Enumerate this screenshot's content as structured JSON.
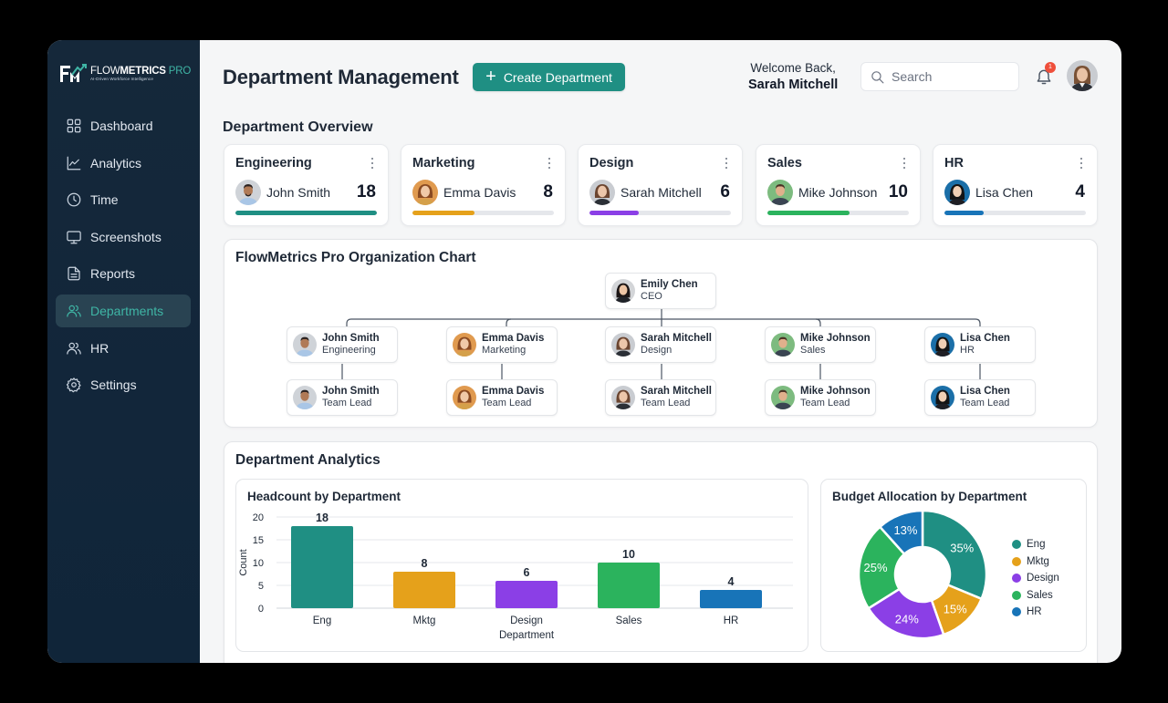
{
  "app": {
    "brand_main": "FLOW",
    "brand_bold": "METRICS",
    "brand_pro": "PRO",
    "tagline": "AI-Driven Workforce Intelligence"
  },
  "sidebar": {
    "items": [
      {
        "label": "Dashboard",
        "icon": "grid-icon",
        "active": false
      },
      {
        "label": "Analytics",
        "icon": "line-chart-icon",
        "active": false
      },
      {
        "label": "Time",
        "icon": "clock-icon",
        "active": false
      },
      {
        "label": "Screenshots",
        "icon": "monitor-icon",
        "active": false
      },
      {
        "label": "Reports",
        "icon": "document-icon",
        "active": false
      },
      {
        "label": "Departments",
        "icon": "users-icon",
        "active": true
      },
      {
        "label": "HR",
        "icon": "users-icon",
        "active": false
      },
      {
        "label": "Settings",
        "icon": "gear-icon",
        "active": false
      }
    ]
  },
  "header": {
    "title": "Department Management",
    "create_button": "Create Department",
    "welcome_line": "Welcome Back,",
    "user_name": "Sarah Mitchell",
    "search_placeholder": "Search",
    "notification_count": "1"
  },
  "overview": {
    "title": "Department Overview",
    "cards": [
      {
        "name": "Engineering",
        "lead": "John Smith",
        "count": "18",
        "progress": 100,
        "color": "#1f8f83"
      },
      {
        "name": "Marketing",
        "lead": "Emma Davis",
        "count": "8",
        "progress": 44,
        "color": "#e5a11b"
      },
      {
        "name": "Design",
        "lead": "Sarah Mitchell",
        "count": "6",
        "progress": 35,
        "color": "#8b3fe6"
      },
      {
        "name": "Sales",
        "lead": "Mike Johnson",
        "count": "10",
        "progress": 58,
        "color": "#2bb35d"
      },
      {
        "name": "HR",
        "lead": "Lisa Chen",
        "count": "4",
        "progress": 28,
        "color": "#1874b8"
      }
    ]
  },
  "org_chart": {
    "title": "FlowMetrics Pro Organization Chart",
    "root": {
      "name": "Emily Chen",
      "role": "CEO"
    },
    "departments": [
      {
        "head": {
          "name": "John Smith",
          "role": "Engineering"
        },
        "lead": {
          "name": "John Smith",
          "role": "Team Lead"
        }
      },
      {
        "head": {
          "name": "Emma Davis",
          "role": "Marketing"
        },
        "lead": {
          "name": "Emma Davis",
          "role": "Team Lead"
        }
      },
      {
        "head": {
          "name": "Sarah Mitchell",
          "role": "Design"
        },
        "lead": {
          "name": "Sarah Mitchell",
          "role": "Team Lead"
        }
      },
      {
        "head": {
          "name": "Mike Johnson",
          "role": "Sales"
        },
        "lead": {
          "name": "Mike Johnson",
          "role": "Team Lead"
        }
      },
      {
        "head": {
          "name": "Lisa Chen",
          "role": "HR"
        },
        "lead": {
          "name": "Lisa Chen",
          "role": "Team Lead"
        }
      }
    ]
  },
  "analytics": {
    "title": "Department Analytics"
  },
  "chart_data": [
    {
      "type": "bar",
      "title": "Headcount by Department",
      "categories": [
        "Eng",
        "Mktg",
        "Design",
        "Sales",
        "HR"
      ],
      "values": [
        18,
        8,
        6,
        10,
        4
      ],
      "colors": [
        "#1f8f83",
        "#e5a11b",
        "#8b3fe6",
        "#2bb35d",
        "#1874b8"
      ],
      "xlabel": "Department",
      "ylabel": "Count",
      "ylim": [
        0,
        20
      ],
      "yticks": [
        0,
        5,
        10,
        15,
        20
      ],
      "grid": true,
      "data_labels": true
    },
    {
      "type": "pie",
      "title": "Budget Allocation by Department",
      "donut": true,
      "categories": [
        "Eng",
        "Mktg",
        "Design",
        "Sales",
        "HR"
      ],
      "values": [
        35,
        15,
        24,
        25,
        13
      ],
      "labels": [
        "35%",
        "15%",
        "24%",
        "25%",
        "13%"
      ],
      "colors": [
        "#1f8f83",
        "#e5a11b",
        "#8b3fe6",
        "#2bb35d",
        "#1874b8"
      ],
      "legend_position": "right"
    }
  ]
}
